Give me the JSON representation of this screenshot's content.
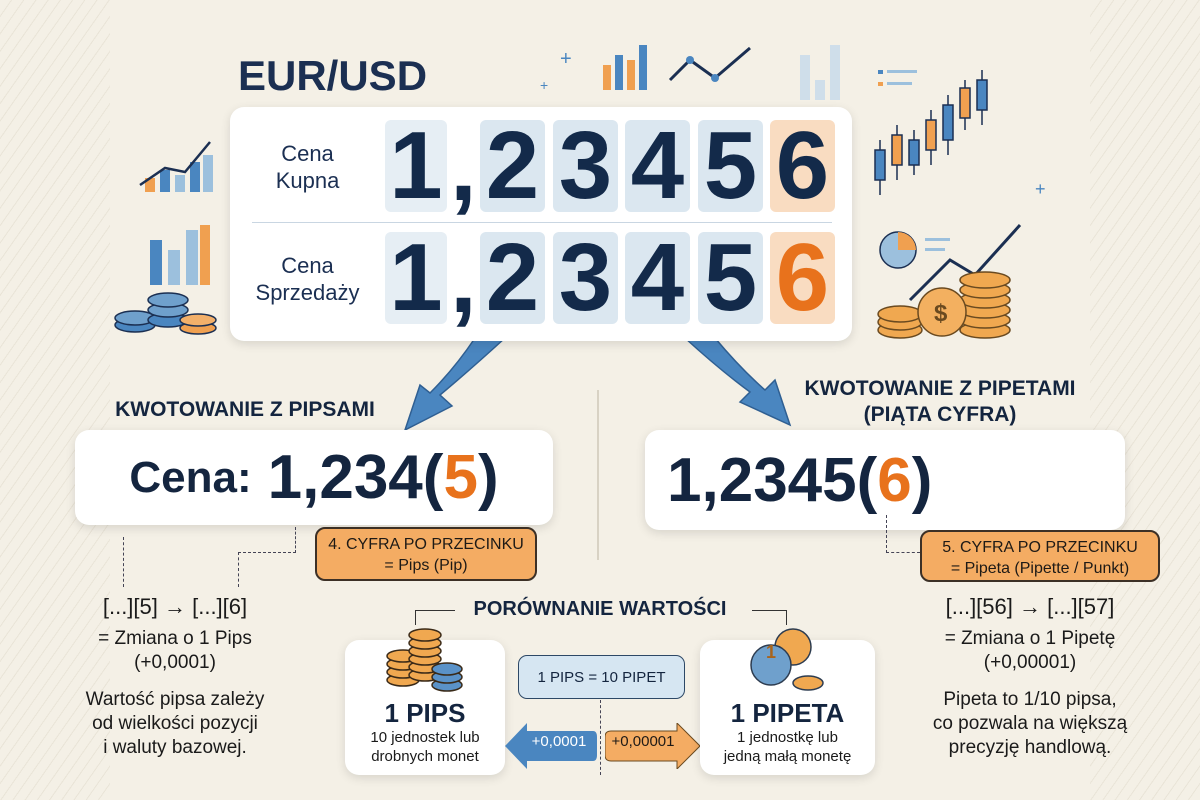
{
  "title": "EUR/USD",
  "quote_panel": {
    "rows": [
      {
        "label_line1": "Cena",
        "label_line2": "Kupna",
        "digits": [
          "1",
          "2",
          "3",
          "4",
          "5",
          "6"
        ],
        "comma": ","
      },
      {
        "label_line1": "Cena",
        "label_line2": "Sprzedaży",
        "digits": [
          "1",
          "2",
          "3",
          "4",
          "5",
          "6"
        ],
        "comma": ","
      }
    ]
  },
  "left": {
    "heading": "KWOTOWANIE Z PIPSAMI",
    "price_prefix": "Cena:",
    "price_main": "1,234(",
    "price_highlight": "5",
    "price_close": ")",
    "callout_line1": "4. CYFRA PO PRZECINKU",
    "callout_line2": "= Pips (Pip)",
    "change": "[...][5] → [...][6]",
    "change_desc": "= Zmiana o 1 Pips",
    "change_value": "(+0,0001)",
    "note_line1": "Wartość pipsa zależy",
    "note_line2": "od wielkości pozycji",
    "note_line3": "i waluty bazowej."
  },
  "right": {
    "heading_line1": "KWOTOWANIE Z PIPETAMI",
    "heading_line2": "(PIĄTA CYFRA)",
    "price_main": "1,2345(",
    "price_highlight": "6",
    "price_close": ")",
    "callout_line1": "5. CYFRA PO PRZECINKU",
    "callout_line2": "= Pipeta (Pipette / Punkt)",
    "change": "[...][56] → [...][57]",
    "change_desc": "= Zmiana o 1 Pipetę",
    "change_value": "(+0,00001)",
    "note_line1": "Pipeta to 1/10 pipsa,",
    "note_line2": "co pozwala na większą",
    "note_line3": "precyzję handlową."
  },
  "comparison": {
    "heading": "PORÓWNANIE WARTOŚCI",
    "equivalence": "1 PIPS = 10 PIPET",
    "pips_title": "1 PIPS",
    "pips_desc_line1": "10 jednostek lub",
    "pips_desc_line2": "drobnych monet",
    "pips_arrow": "+0,0001",
    "pipeta_arrow": "+0,00001",
    "pipeta_title": "1 PIPETA",
    "pipeta_desc_line1": "1 jednostkę lub",
    "pipeta_desc_line2": "jedną małą monetę",
    "coin_label": "1"
  },
  "colors": {
    "navy": "#14253f",
    "orange": "#e8721c",
    "blue": "#4a86c0",
    "callout": "#f4ac63",
    "background": "#f4f0e6"
  }
}
